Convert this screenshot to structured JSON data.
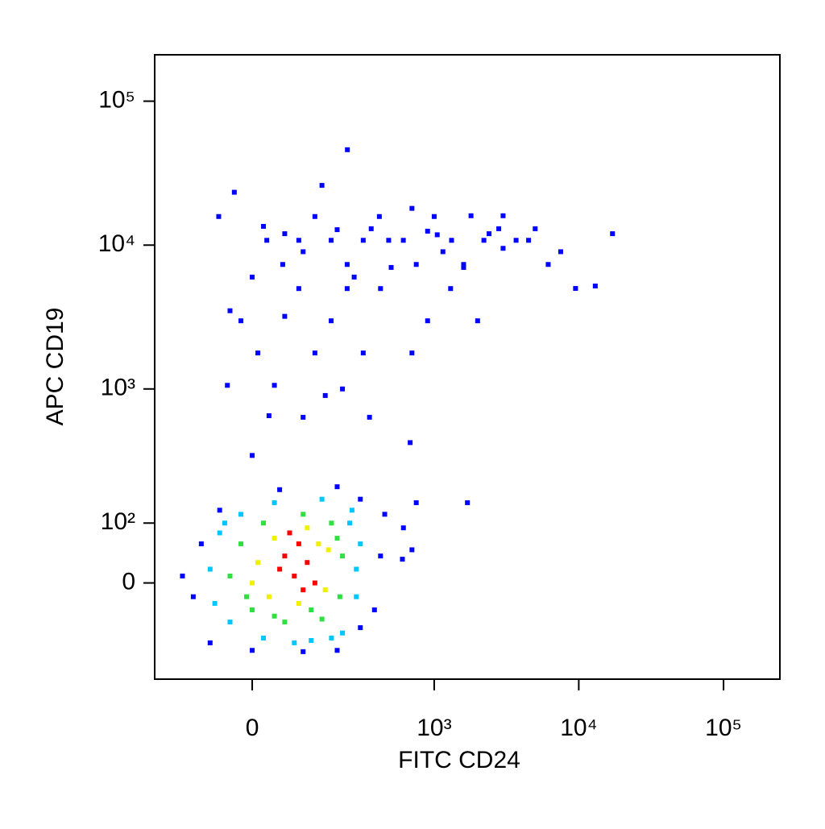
{
  "chart_data": {
    "type": "scatter",
    "x_label": "FITC CD24",
    "y_label": "APC CD19",
    "xscale": "biexponential",
    "yscale": "biexponential",
    "xlim": [
      -250,
      245000
    ],
    "ylim": [
      -200,
      210000
    ],
    "xticks": [
      0,
      {
        "value": 1000,
        "label": "10³"
      },
      {
        "value": 10000,
        "label": "10⁴"
      },
      {
        "value": 100000,
        "label": "10⁵"
      }
    ],
    "yticks": [
      0,
      {
        "value": 100,
        "label": "10²"
      },
      {
        "value": 1000,
        "label": "10³"
      },
      {
        "value": 10000,
        "label": "10⁴"
      },
      {
        "value": 100000,
        "label": "10⁵"
      }
    ],
    "series": [
      {
        "color": "#0000ff",
        "x": [
          -62,
          -32,
          26,
          56,
          90,
          130,
          179,
          239,
          315,
          412,
          609,
          1000,
          1320,
          2210,
          3690,
          6150,
          17100,
          -20,
          10,
          40,
          -45,
          90,
          179,
          315,
          130,
          239,
          480,
          750,
          1600,
          2800,
          4500,
          900,
          1150,
          500,
          360,
          200,
          100,
          60,
          20,
          0,
          270,
          420,
          1300,
          2000,
          700,
          900,
          9500,
          13000,
          7500,
          5000,
          3000,
          1800,
          700,
          240,
          150,
          30,
          100,
          350,
          680,
          0,
          -40,
          60,
          160,
          220,
          1600,
          3000,
          2400,
          1050,
          450,
          610,
          700,
          750,
          1700,
          600,
          -120,
          -80,
          0,
          200,
          300,
          420,
          380,
          -100,
          -60,
          50,
          200,
          300,
          -150,
          100
        ],
        "y": [
          15800,
          23300,
          10800,
          7340,
          10800,
          15800,
          10800,
          7340,
          10800,
          15800,
          10800,
          15800,
          10800,
          10800,
          10800,
          7340,
          12000,
          2980,
          1780,
          1060,
          1060,
          4990,
          2980,
          1780,
          1780,
          4990,
          10800,
          7340,
          7340,
          13000,
          10800,
          12500,
          9000,
          7000,
          13000,
          12800,
          9000,
          12000,
          13500,
          6000,
          6000,
          4990,
          4990,
          2980,
          1780,
          2980,
          5000,
          5200,
          9000,
          13000,
          16000,
          16000,
          18000,
          46000,
          26000,
          650,
          634,
          634,
          420,
          340,
          3500,
          3200,
          900,
          1000,
          7000,
          9500,
          12000,
          11800,
          120,
          90,
          50,
          150,
          150,
          35,
          -20,
          -100,
          -117,
          -117,
          -70,
          40,
          -40,
          60,
          130,
          190,
          200,
          160,
          10,
          -120
        ]
      },
      {
        "color": "#00c8ff",
        "x": [
          -60,
          -80,
          -40,
          20,
          120,
          220,
          280,
          300,
          260,
          150,
          40,
          -20,
          -70,
          250,
          80,
          180,
          -50,
          280
        ],
        "y": [
          80,
          20,
          -60,
          -90,
          -95,
          -80,
          -20,
          60,
          130,
          160,
          150,
          120,
          -30,
          100,
          -100,
          -90,
          100,
          20
        ]
      },
      {
        "color": "#30e040",
        "x": [
          -20,
          -40,
          0,
          60,
          150,
          210,
          220,
          180,
          100,
          20,
          -10,
          120,
          200,
          40
        ],
        "y": [
          60,
          10,
          -40,
          -60,
          -55,
          -20,
          40,
          100,
          120,
          100,
          -20,
          -40,
          70,
          -50
        ]
      },
      {
        "color": "#f0f000",
        "x": [
          10,
          30,
          90,
          160,
          170,
          110,
          40,
          0,
          140
        ],
        "y": [
          30,
          -20,
          -30,
          -10,
          50,
          90,
          70,
          0,
          60
        ]
      },
      {
        "color": "#ff0000",
        "x": [
          60,
          80,
          110,
          90,
          130,
          50,
          100,
          70
        ],
        "y": [
          40,
          10,
          30,
          60,
          0,
          20,
          -10,
          80
        ]
      }
    ]
  }
}
